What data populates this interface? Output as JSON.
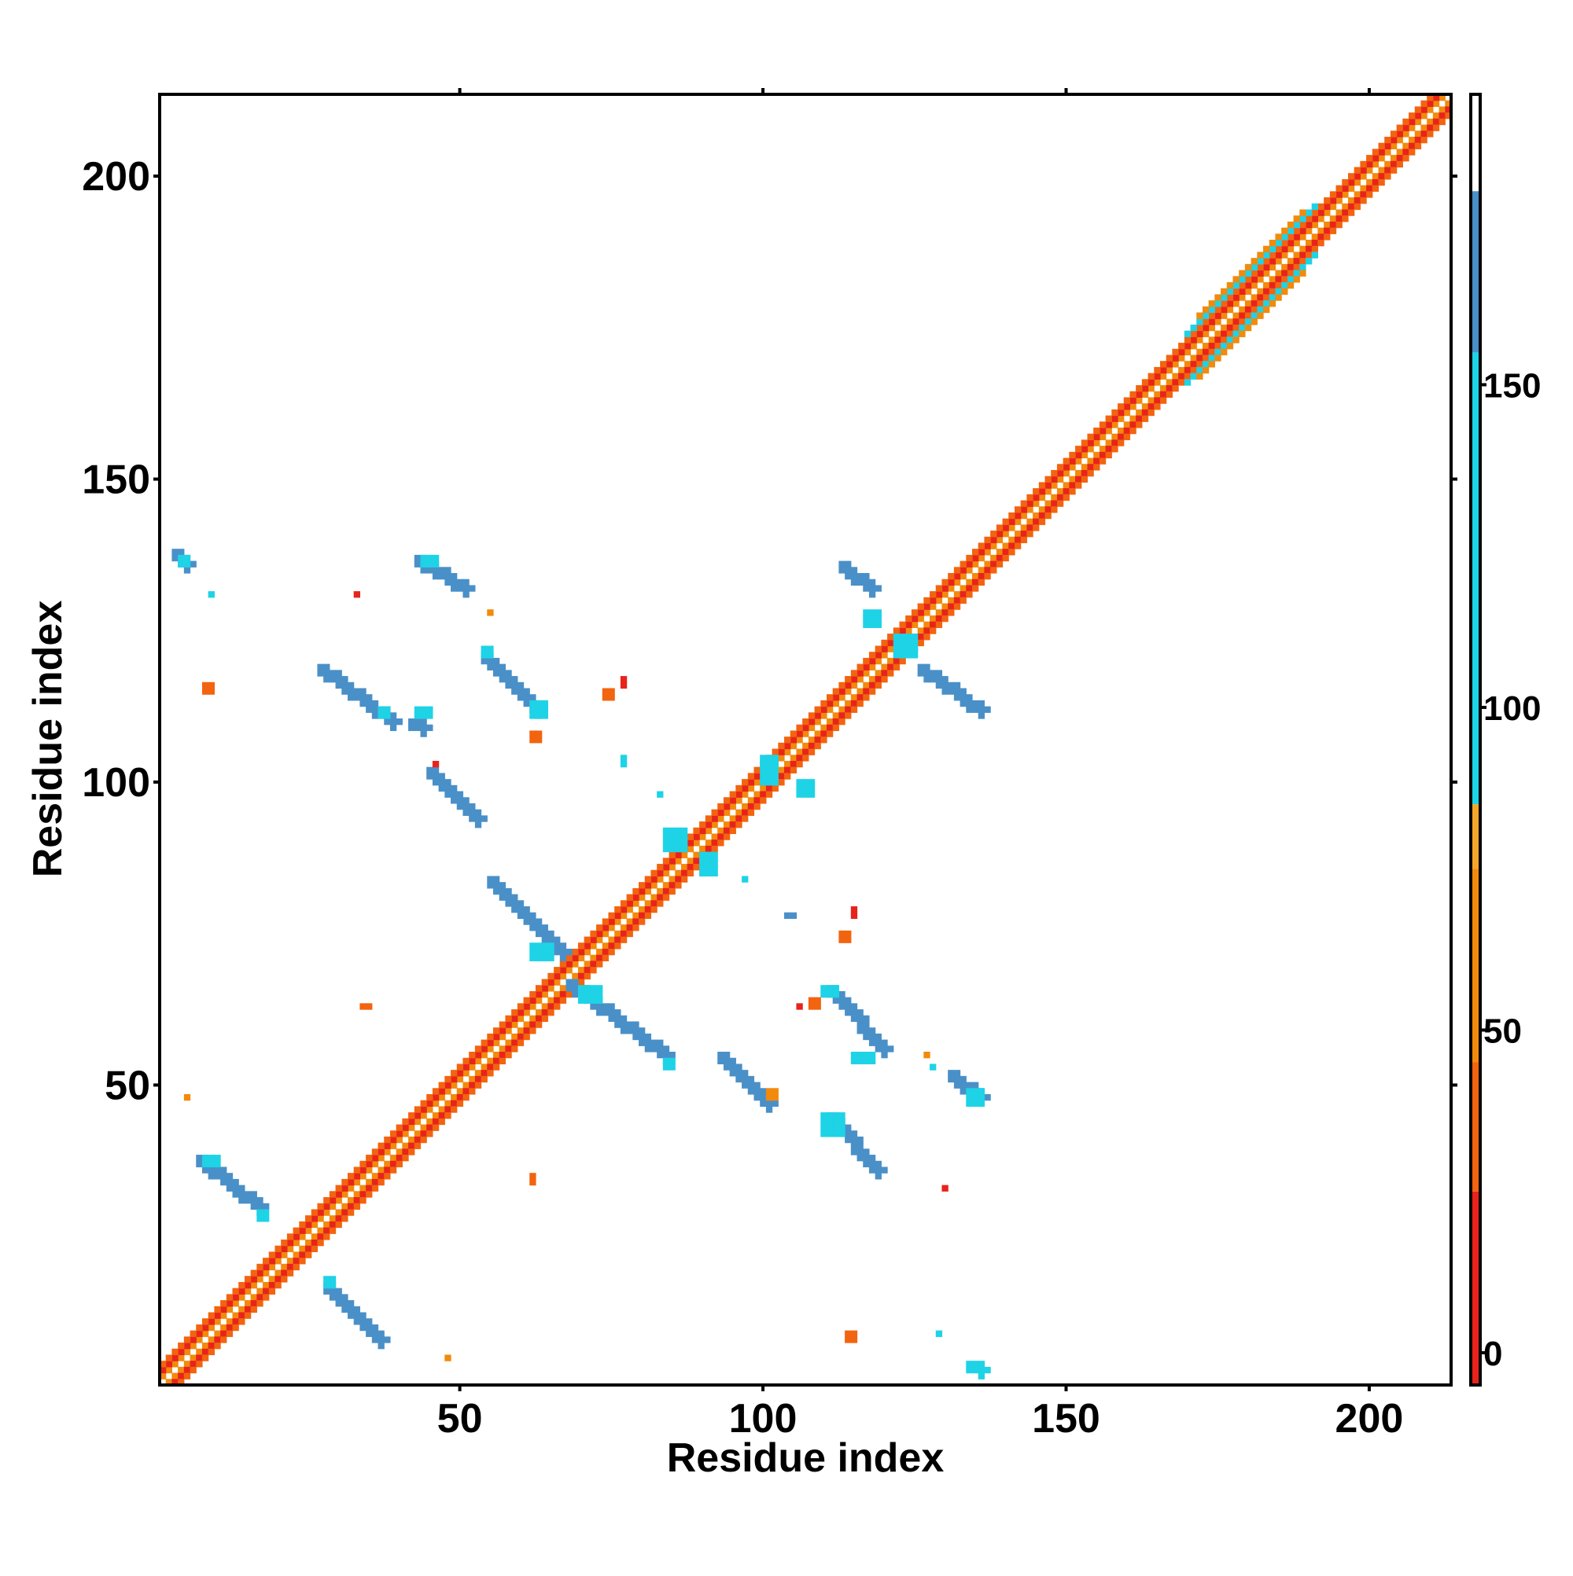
{
  "chart_data": {
    "type": "heatmap",
    "xlabel": "Residue index",
    "ylabel": "Residue index",
    "xlim": [
      0.5,
      213.5
    ],
    "ylim": [
      0.5,
      213.5
    ],
    "x_ticks": [
      50,
      100,
      150,
      200
    ],
    "y_ticks": [
      50,
      100,
      150,
      200
    ],
    "x_tick_labels": [
      "50",
      "100",
      "150",
      "200"
    ],
    "y_tick_labels": [
      "50",
      "100",
      "150",
      "200"
    ],
    "grid": false,
    "colorbar": {
      "range": [
        -5,
        195
      ],
      "ticks": [
        0,
        50,
        100,
        150
      ],
      "tick_labels": [
        "0",
        "50",
        "100",
        "150"
      ],
      "bins": [
        {
          "from": -5,
          "to": 25,
          "color": "#e8231c"
        },
        {
          "from": 25,
          "to": 45,
          "color": "#f2640f"
        },
        {
          "from": 45,
          "to": 75,
          "color": "#f28a0c"
        },
        {
          "from": 75,
          "to": 85,
          "color": "#f5a62a"
        },
        {
          "from": 85,
          "to": 155,
          "color": "#1ed3e6"
        },
        {
          "from": 155,
          "to": 180,
          "color": "#4a90c8"
        },
        {
          "from": 180,
          "to": 195,
          "color": "#ffffff"
        }
      ]
    },
    "palette": {
      "red": "#e8231c",
      "orange_red": "#f2640f",
      "orange": "#f28a0c",
      "cyan": "#1ed3e6",
      "steel_blue": "#4a90c8"
    },
    "diagonal_bands": [
      {
        "x0": 1,
        "x1": 213,
        "offset": 1,
        "color": "orange"
      },
      {
        "x0": 1,
        "x1": 213,
        "offset": -1,
        "color": "orange"
      },
      {
        "x0": 1,
        "x1": 213,
        "offset": 2,
        "color": "red"
      },
      {
        "x0": 1,
        "x1": 213,
        "offset": -2,
        "color": "red"
      },
      {
        "x0": 1,
        "x1": 213,
        "offset": 3,
        "color": "orange_red"
      },
      {
        "x0": 1,
        "x1": 213,
        "offset": -3,
        "color": "orange_red"
      },
      {
        "x0": 170,
        "x1": 191,
        "offset": 4,
        "color": "cyan"
      },
      {
        "x0": 170,
        "x1": 191,
        "offset": -4,
        "color": "cyan"
      },
      {
        "x0": 172,
        "x1": 189,
        "offset": 5,
        "color": "orange"
      },
      {
        "x0": 172,
        "x1": 189,
        "offset": -5,
        "color": "orange"
      }
    ],
    "contact_segments": [
      {
        "x0": 3,
        "y0": 138,
        "x1": 5,
        "y1": 136,
        "color": "steel_blue"
      },
      {
        "x0": 7,
        "y0": 38,
        "x1": 17,
        "y1": 30,
        "color": "steel_blue"
      },
      {
        "x0": 27,
        "y0": 119,
        "x1": 39,
        "y1": 110,
        "color": "steel_blue"
      },
      {
        "x0": 28,
        "y0": 17,
        "x1": 37,
        "y1": 8,
        "color": "steel_blue"
      },
      {
        "x0": 42,
        "y0": 110,
        "x1": 44,
        "y1": 109,
        "color": "steel_blue"
      },
      {
        "x0": 43,
        "y0": 137,
        "x1": 51,
        "y1": 132,
        "color": "steel_blue"
      },
      {
        "x0": 45,
        "y0": 102,
        "x1": 53,
        "y1": 94,
        "color": "steel_blue"
      },
      {
        "x0": 54,
        "y0": 121,
        "x1": 63,
        "y1": 112,
        "color": "steel_blue"
      },
      {
        "x0": 55,
        "y0": 84,
        "x1": 67,
        "y1": 72,
        "color": "steel_blue"
      },
      {
        "x0": 68,
        "y0": 67,
        "x1": 84,
        "y1": 55,
        "color": "steel_blue"
      },
      {
        "x0": 93,
        "y0": 55,
        "x1": 101,
        "y1": 47,
        "color": "steel_blue"
      },
      {
        "x0": 111,
        "y0": 66,
        "x1": 120,
        "y1": 56,
        "color": "steel_blue"
      },
      {
        "x0": 111,
        "y0": 45,
        "x1": 119,
        "y1": 36,
        "color": "steel_blue"
      },
      {
        "x0": 113,
        "y0": 136,
        "x1": 118,
        "y1": 132,
        "color": "steel_blue"
      },
      {
        "x0": 126,
        "y0": 119,
        "x1": 136,
        "y1": 112,
        "color": "steel_blue"
      },
      {
        "x0": 131,
        "y0": 52,
        "x1": 136,
        "y1": 48,
        "color": "steel_blue"
      },
      {
        "x0": 134,
        "y0": 4,
        "x1": 136,
        "y1": 3,
        "color": "cyan"
      }
    ],
    "contact_blobs": [
      {
        "x": 4,
        "y": 137,
        "w": 2,
        "h": 2,
        "color": "cyan"
      },
      {
        "x": 8,
        "y": 38,
        "w": 3,
        "h": 2,
        "color": "cyan"
      },
      {
        "x": 17,
        "y": 29,
        "w": 2,
        "h": 2,
        "color": "cyan"
      },
      {
        "x": 28,
        "y": 18,
        "w": 2,
        "h": 2,
        "color": "cyan"
      },
      {
        "x": 37,
        "y": 112,
        "w": 2,
        "h": 2,
        "color": "cyan"
      },
      {
        "x": 43,
        "y": 112,
        "w": 3,
        "h": 2,
        "color": "cyan"
      },
      {
        "x": 44,
        "y": 137,
        "w": 3,
        "h": 2,
        "color": "cyan"
      },
      {
        "x": 54,
        "y": 122,
        "w": 2,
        "h": 2,
        "color": "cyan"
      },
      {
        "x": 62,
        "y": 113,
        "w": 3,
        "h": 3,
        "color": "cyan"
      },
      {
        "x": 62,
        "y": 73,
        "w": 4,
        "h": 3,
        "color": "cyan"
      },
      {
        "x": 70,
        "y": 66,
        "w": 4,
        "h": 3,
        "color": "cyan"
      },
      {
        "x": 84,
        "y": 54,
        "w": 2,
        "h": 2,
        "color": "cyan"
      },
      {
        "x": 84,
        "y": 92,
        "w": 4,
        "h": 4,
        "color": "cyan"
      },
      {
        "x": 90,
        "y": 88,
        "w": 3,
        "h": 4,
        "color": "cyan"
      },
      {
        "x": 100,
        "y": 104,
        "w": 3,
        "h": 5,
        "color": "cyan"
      },
      {
        "x": 106,
        "y": 100,
        "w": 3,
        "h": 3,
        "color": "cyan"
      },
      {
        "x": 110,
        "y": 66,
        "w": 3,
        "h": 2,
        "color": "cyan"
      },
      {
        "x": 110,
        "y": 45,
        "w": 4,
        "h": 4,
        "color": "cyan"
      },
      {
        "x": 115,
        "y": 55,
        "w": 4,
        "h": 2,
        "color": "cyan"
      },
      {
        "x": 117,
        "y": 128,
        "w": 3,
        "h": 3,
        "color": "cyan"
      },
      {
        "x": 122,
        "y": 124,
        "w": 4,
        "h": 4,
        "color": "cyan"
      },
      {
        "x": 134,
        "y": 49,
        "w": 3,
        "h": 3,
        "color": "cyan"
      },
      {
        "x": 9,
        "y": 131,
        "w": 1,
        "h": 1,
        "color": "cyan"
      },
      {
        "x": 77,
        "y": 104,
        "w": 1,
        "h": 2,
        "color": "cyan"
      },
      {
        "x": 83,
        "y": 98,
        "w": 1,
        "h": 1,
        "color": "cyan"
      },
      {
        "x": 97,
        "y": 84,
        "w": 1,
        "h": 1,
        "color": "cyan"
      },
      {
        "x": 104,
        "y": 78,
        "w": 2,
        "h": 1,
        "color": "steel_blue"
      },
      {
        "x": 128,
        "y": 53,
        "w": 1,
        "h": 1,
        "color": "cyan"
      },
      {
        "x": 129,
        "y": 9,
        "w": 1,
        "h": 1,
        "color": "cyan"
      },
      {
        "x": 8,
        "y": 116,
        "w": 2,
        "h": 2,
        "color": "orange_red"
      },
      {
        "x": 5,
        "y": 48,
        "w": 1,
        "h": 1,
        "color": "orange"
      },
      {
        "x": 33,
        "y": 131,
        "w": 1,
        "h": 1,
        "color": "red"
      },
      {
        "x": 34,
        "y": 63,
        "w": 2,
        "h": 1,
        "color": "orange_red"
      },
      {
        "x": 46,
        "y": 103,
        "w": 1,
        "h": 1,
        "color": "red"
      },
      {
        "x": 48,
        "y": 5,
        "w": 1,
        "h": 1,
        "color": "orange"
      },
      {
        "x": 55,
        "y": 128,
        "w": 1,
        "h": 1,
        "color": "orange"
      },
      {
        "x": 62,
        "y": 108,
        "w": 2,
        "h": 2,
        "color": "orange_red"
      },
      {
        "x": 62,
        "y": 35,
        "w": 1,
        "h": 2,
        "color": "orange_red"
      },
      {
        "x": 74,
        "y": 115,
        "w": 2,
        "h": 2,
        "color": "orange_red"
      },
      {
        "x": 77,
        "y": 117,
        "w": 1,
        "h": 2,
        "color": "red"
      },
      {
        "x": 101,
        "y": 49,
        "w": 2,
        "h": 2,
        "color": "orange"
      },
      {
        "x": 106,
        "y": 63,
        "w": 1,
        "h": 1,
        "color": "red"
      },
      {
        "x": 108,
        "y": 64,
        "w": 2,
        "h": 2,
        "color": "orange_red"
      },
      {
        "x": 113,
        "y": 75,
        "w": 2,
        "h": 2,
        "color": "orange_red"
      },
      {
        "x": 115,
        "y": 79,
        "w": 1,
        "h": 2,
        "color": "red"
      },
      {
        "x": 114,
        "y": 9,
        "w": 2,
        "h": 2,
        "color": "orange_red"
      },
      {
        "x": 127,
        "y": 55,
        "w": 1,
        "h": 1,
        "color": "orange"
      },
      {
        "x": 130,
        "y": 33,
        "w": 1,
        "h": 1,
        "color": "red"
      }
    ]
  }
}
